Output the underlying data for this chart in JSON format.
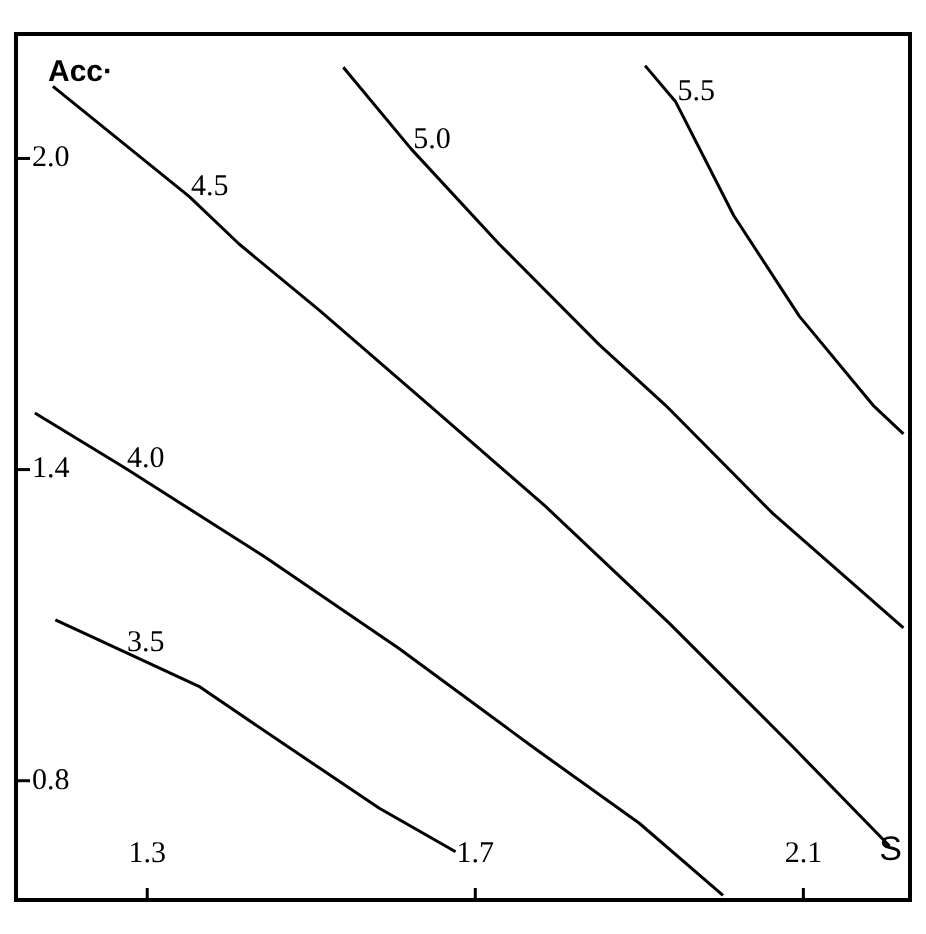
{
  "chart_data": {
    "type": "line",
    "xlabel": "S",
    "ylabel": "Acc·",
    "xlim": [
      1.14,
      2.23
    ],
    "ylim": [
      0.57,
      2.24
    ],
    "xticks": [
      1.3,
      1.7,
      2.1
    ],
    "yticks": [
      {
        "value": 0.8,
        "label": "0.8"
      },
      {
        "value": 1.4,
        "label": "1.4"
      },
      {
        "value": 2,
        "label": "2.0"
      }
    ],
    "grid": false,
    "legend": false,
    "marker": "none",
    "line_style": "solid",
    "series": [
      {
        "name": "3.5",
        "color": "#000000",
        "x": [
          1.188,
          1.273,
          1.363,
          1.473,
          1.583,
          1.676
        ],
        "values": [
          1.11,
          1.048,
          0.982,
          0.864,
          0.747,
          0.663
        ]
      },
      {
        "name": "4.0",
        "color": "#000000",
        "x": [
          1.163,
          1.273,
          1.444,
          1.607,
          1.771,
          1.9,
          2.002
        ],
        "values": [
          1.509,
          1.403,
          1.231,
          1.055,
          0.864,
          0.718,
          0.579
        ]
      },
      {
        "name": "4.5",
        "color": "#000000",
        "x": [
          1.185,
          1.351,
          1.412,
          1.51,
          1.644,
          1.785,
          1.937,
          2.088,
          2.205
        ],
        "values": [
          2.139,
          1.927,
          1.835,
          1.707,
          1.524,
          1.33,
          1.103,
          0.864,
          0.674
        ]
      },
      {
        "name": "5.0",
        "color": "#000000",
        "x": [
          1.539,
          1.622,
          1.729,
          1.851,
          1.932,
          2.063,
          2.222
        ],
        "values": [
          2.176,
          2.018,
          1.835,
          1.641,
          1.524,
          1.315,
          1.095
        ]
      },
      {
        "name": "5.5",
        "color": "#000000",
        "x": [
          1.907,
          1.944,
          2.015,
          2.095,
          2.185,
          2.222
        ],
        "values": [
          2.179,
          2.11,
          1.89,
          1.696,
          1.524,
          1.469
        ]
      }
    ]
  }
}
